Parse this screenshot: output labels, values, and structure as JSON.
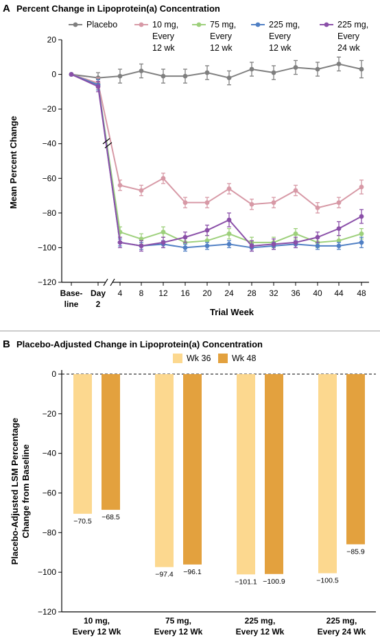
{
  "chart_data": [
    {
      "type": "line",
      "panel_label": "A",
      "title": "Percent Change in Lipoprotein(a) Concentration",
      "xlabel": "Trial Week",
      "ylabel": "Mean Percent Change",
      "ylim": [
        -120,
        20
      ],
      "yticks": [
        -120,
        -100,
        -80,
        -60,
        -40,
        -20,
        0,
        20
      ],
      "x_ticks": [
        {
          "label": "Base-",
          "label2": "line",
          "x": "Baseline"
        },
        {
          "label": "Day",
          "label2": "2",
          "x": "Day 2"
        },
        {
          "label": "4",
          "x": 4
        },
        {
          "label": "8",
          "x": 8
        },
        {
          "label": "12",
          "x": 12
        },
        {
          "label": "16",
          "x": 16
        },
        {
          "label": "20",
          "x": 20
        },
        {
          "label": "24",
          "x": 24
        },
        {
          "label": "28",
          "x": 28
        },
        {
          "label": "32",
          "x": 32
        },
        {
          "label": "36",
          "x": 36
        },
        {
          "label": "40",
          "x": 40
        },
        {
          "label": "44",
          "x": 44
        },
        {
          "label": "48",
          "x": 48
        }
      ],
      "axis_break": "between Day 2 and 4",
      "legend_position": "top",
      "series": [
        {
          "name": "Placebo",
          "legend_lines": [
            "Placebo"
          ],
          "color": "#7f7f7f",
          "values": [
            0,
            -2,
            -1,
            2,
            -1,
            -1,
            1,
            -2,
            3,
            1,
            4,
            3,
            6,
            3
          ],
          "errors": [
            0,
            3,
            4,
            4,
            4,
            4,
            4,
            4,
            4,
            4,
            4,
            4,
            4,
            5
          ]
        },
        {
          "name": "10 mg, Every 12 wk",
          "legend_lines": [
            "10 mg,",
            "Every",
            "12 wk"
          ],
          "color": "#d799a6",
          "values": [
            0,
            -5,
            -64,
            -67,
            -60,
            -74,
            -74,
            -66,
            -75,
            -74,
            -67,
            -77,
            -74,
            -65
          ],
          "errors": [
            0,
            3,
            3,
            3,
            3,
            3,
            3,
            3,
            3,
            3,
            3,
            3,
            3,
            4
          ]
        },
        {
          "name": "75 mg, Every 12 wk",
          "legend_lines": [
            "75 mg,",
            "Every",
            "12 wk"
          ],
          "color": "#9dd07b",
          "values": [
            0,
            -6,
            -91,
            -95,
            -91,
            -97,
            -96,
            -92,
            -97,
            -97,
            -92,
            -97,
            -96,
            -92
          ],
          "errors": [
            0,
            3,
            3,
            3,
            3,
            3,
            3,
            3,
            3,
            3,
            3,
            3,
            3,
            3
          ]
        },
        {
          "name": "225 mg, Every 12 wk",
          "legend_lines": [
            "225 mg,",
            "Every",
            "12 wk"
          ],
          "color": "#4f7fc4",
          "values": [
            0,
            -6,
            -97,
            -99,
            -98,
            -100,
            -99,
            -98,
            -100,
            -99,
            -98,
            -99,
            -99,
            -97
          ],
          "errors": [
            0,
            3,
            2,
            2,
            2,
            2,
            2,
            2,
            2,
            2,
            2,
            2,
            2,
            3
          ]
        },
        {
          "name": "225 mg, Every 24 wk",
          "legend_lines": [
            "225 mg,",
            "Every",
            "24 wk"
          ],
          "color": "#8a4fa8",
          "values": [
            0,
            -7,
            -97,
            -99,
            -97,
            -94,
            -90,
            -84,
            -99,
            -98,
            -97,
            -94,
            -89,
            -82
          ],
          "errors": [
            0,
            3,
            3,
            3,
            3,
            3,
            3,
            4,
            3,
            3,
            3,
            3,
            4,
            4
          ]
        }
      ]
    },
    {
      "type": "bar",
      "panel_label": "B",
      "title": "Placebo-Adjusted Change in Lipoprotein(a) Concentration",
      "ylabel_lines": [
        "Placebo-Adjusted LSM Percentage",
        "Change from Baseline"
      ],
      "ylim": [
        -120,
        0
      ],
      "yticks": [
        -120,
        -100,
        -80,
        -60,
        -40,
        -20,
        0
      ],
      "legend_position": "top",
      "categories": [
        [
          "10 mg,",
          "Every 12 Wk"
        ],
        [
          "75 mg,",
          "Every 12 Wk"
        ],
        [
          "225 mg,",
          "Every 12 Wk"
        ],
        [
          "225 mg,",
          "Every 24 Wk"
        ]
      ],
      "series": [
        {
          "name": "Wk 36",
          "color": "#fcd88f",
          "values": [
            -70.5,
            -97.4,
            -101.1,
            -100.5
          ],
          "labels": [
            "−70.5",
            "−97.4",
            "−101.1",
            "−100.5"
          ]
        },
        {
          "name": "Wk 48",
          "color": "#e3a13e",
          "values": [
            -68.5,
            -96.1,
            -100.9,
            -85.9
          ],
          "labels": [
            "−68.5",
            "−96.1",
            "−100.9",
            "−85.9"
          ]
        }
      ]
    }
  ]
}
